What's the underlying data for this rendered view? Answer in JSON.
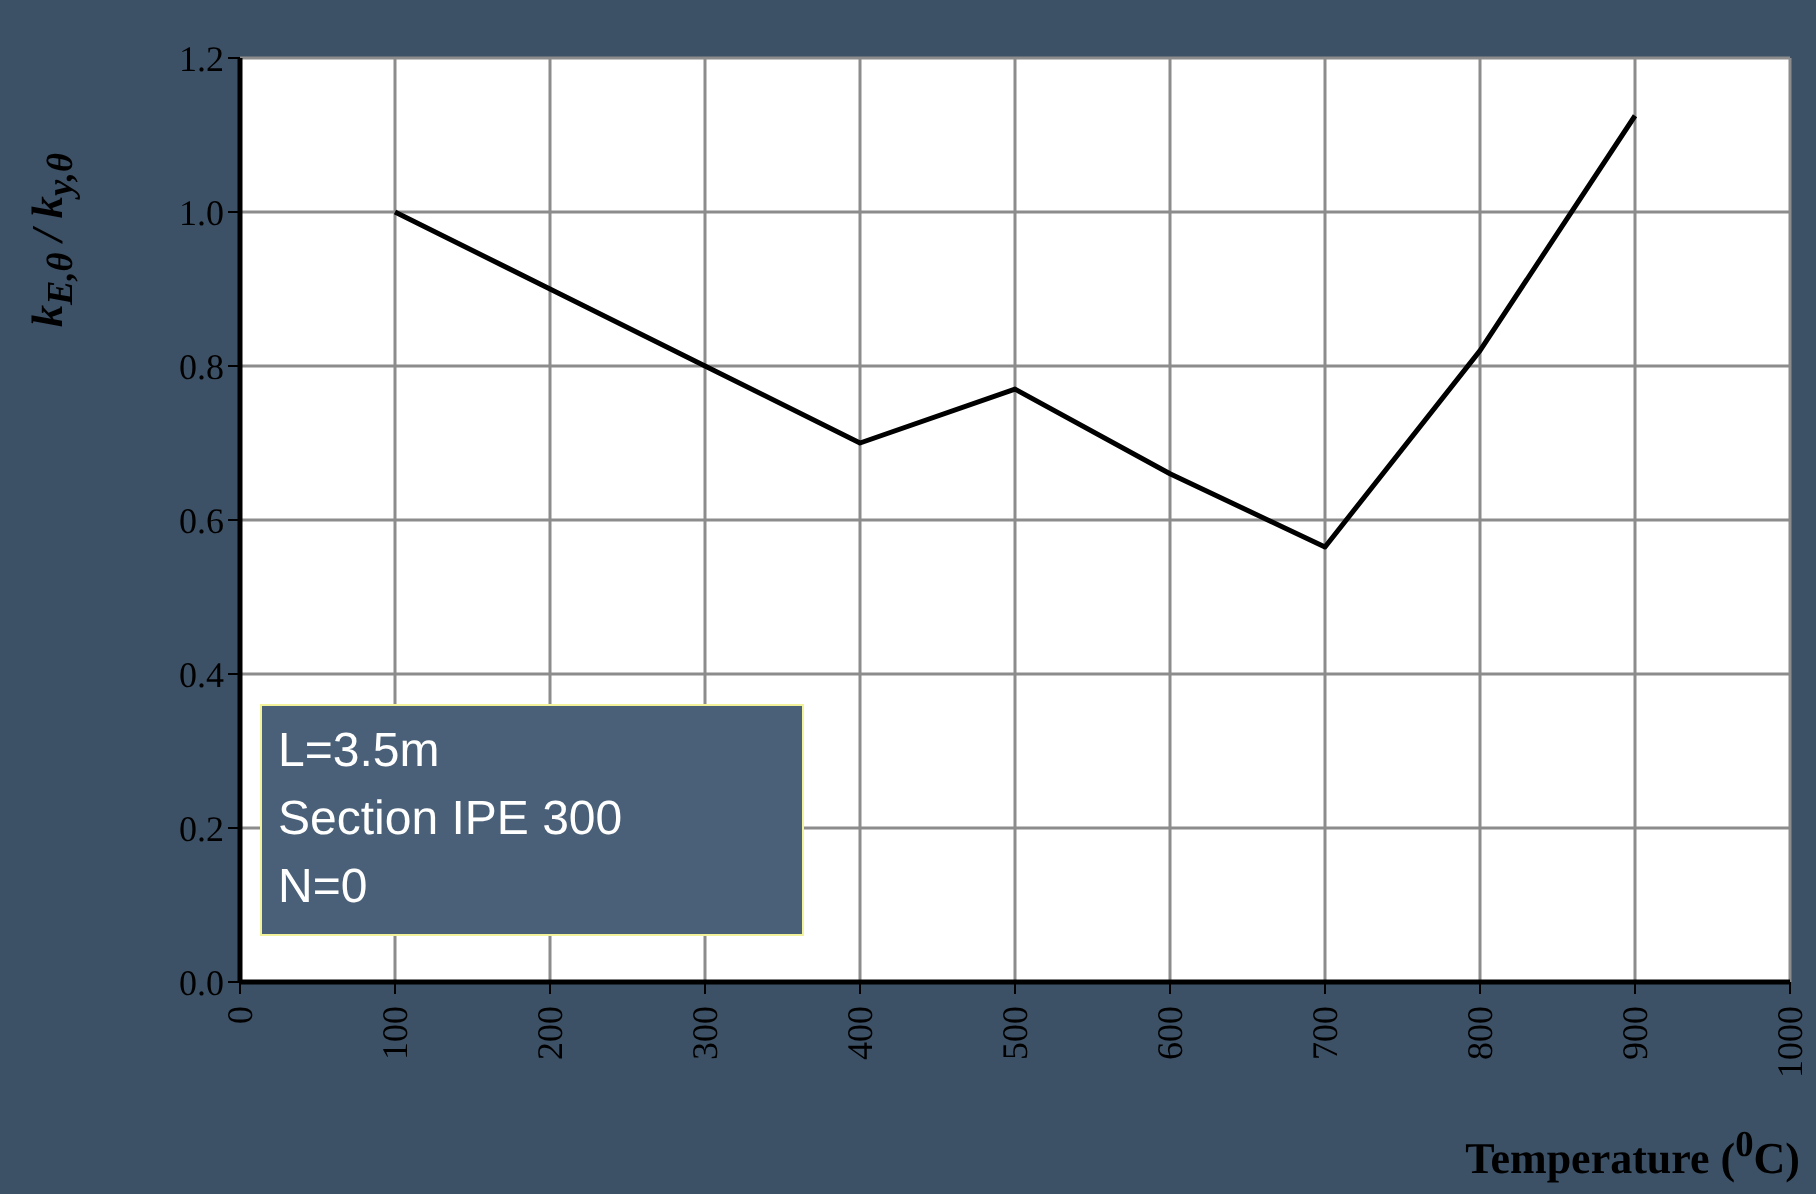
{
  "chart_data": {
    "type": "line",
    "xlabel": "Temperature ($^{0}$C)",
    "ylabel": "k$_{E,θ}$ / k$_{y,θ}$",
    "annotations": [
      "L=3.5m",
      "Section IPE 300",
      "N=0"
    ],
    "x": [
      100,
      200,
      300,
      400,
      500,
      600,
      700,
      800,
      900
    ],
    "series": [
      {
        "color": "#000000",
        "values": [
          1.0,
          0.9,
          0.8,
          0.7,
          0.77,
          0.66,
          0.565,
          0.82,
          1.125
        ]
      }
    ],
    "xlim": [
      0,
      1000
    ],
    "xticks": [
      0,
      100,
      200,
      300,
      400,
      500,
      600,
      700,
      800,
      900,
      1000
    ],
    "ylim": [
      0,
      1.2
    ],
    "yticks": [
      {
        "value": 0,
        "label": "0.0"
      },
      0.2,
      0.4,
      0.6,
      0.8,
      {
        "value": 1,
        "label": "1.0"
      },
      1.2
    ],
    "grid": true,
    "marker": "none",
    "line_style": "solid"
  }
}
